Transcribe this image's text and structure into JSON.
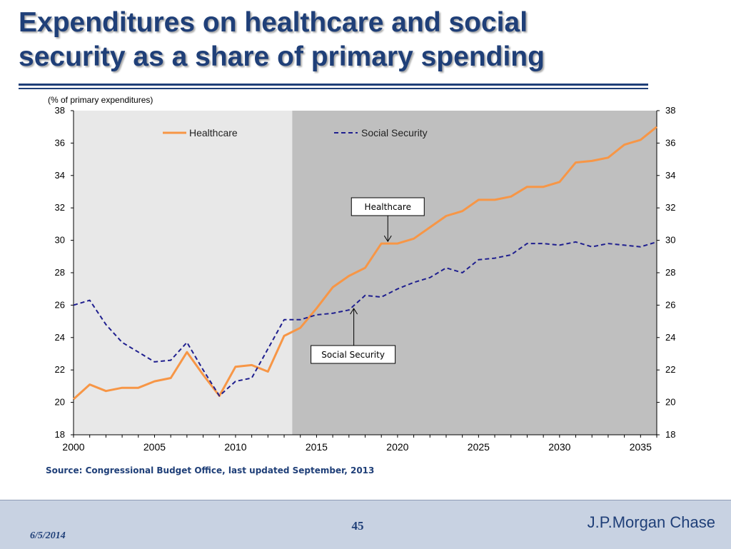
{
  "slide": {
    "title_line1": "Expenditures on healthcare and social",
    "title_line2": "security as a share of primary spending",
    "source": "Source: Congressional Budget Office, last updated September, 2013"
  },
  "footer": {
    "date": "6/5/2014",
    "page_number": "45",
    "brand": "J.P.Morgan Chase"
  },
  "colors": {
    "title": "#1f3f78",
    "healthcare_line": "#f79646",
    "social_security_line": "#1f1f8f",
    "historical_background": "#e8e8e8",
    "projection_background": "#bfbfbf",
    "footer_background": "#c8d2e2"
  },
  "chart_data": {
    "type": "line",
    "unit_label": "(% of primary expenditures)",
    "x": [
      2000,
      2001,
      2002,
      2003,
      2004,
      2005,
      2006,
      2007,
      2008,
      2009,
      2010,
      2011,
      2012,
      2013,
      2014,
      2015,
      2016,
      2017,
      2018,
      2019,
      2020,
      2021,
      2022,
      2023,
      2024,
      2025,
      2026,
      2027,
      2028,
      2029,
      2030,
      2031,
      2032,
      2033,
      2034,
      2035,
      2036
    ],
    "x_ticks": [
      2000,
      2005,
      2010,
      2015,
      2020,
      2025,
      2030,
      2035
    ],
    "xlim": [
      2000,
      2036
    ],
    "ylim": [
      18,
      38
    ],
    "y_ticks": [
      18,
      20,
      22,
      24,
      26,
      28,
      30,
      32,
      34,
      36,
      38
    ],
    "y_axes": "left-and-right",
    "grid": false,
    "legend_placement": "top",
    "projection_shading_start": 2013.5,
    "series": [
      {
        "name": "Healthcare",
        "style": "solid",
        "values": [
          20.2,
          21.1,
          20.7,
          20.9,
          20.9,
          21.3,
          21.5,
          23.1,
          21.7,
          20.4,
          22.2,
          22.3,
          21.9,
          24.1,
          24.6,
          25.8,
          27.1,
          27.8,
          28.3,
          29.8,
          29.8,
          30.1,
          30.8,
          31.5,
          31.8,
          32.5,
          32.5,
          32.7,
          33.3,
          33.3,
          33.6,
          34.8,
          34.9,
          35.1,
          35.9,
          36.2,
          37.0
        ]
      },
      {
        "name": "Social Security",
        "style": "dashed",
        "values": [
          26.0,
          26.3,
          24.8,
          23.7,
          23.1,
          22.5,
          22.6,
          23.7,
          22.0,
          20.4,
          21.3,
          21.5,
          23.3,
          25.1,
          25.1,
          25.4,
          25.5,
          25.7,
          26.6,
          26.5,
          27.0,
          27.4,
          27.7,
          28.3,
          28.0,
          28.8,
          28.9,
          29.1,
          29.8,
          29.8,
          29.7,
          29.9,
          29.6,
          29.8,
          29.7,
          29.6,
          29.9
        ]
      }
    ],
    "annotations": [
      {
        "text": "Healthcare",
        "points_to": {
          "series": "Healthcare",
          "x": 2019.4
        }
      },
      {
        "text": "Social Security",
        "points_to": {
          "series": "Social Security",
          "x": 2017.3
        }
      }
    ]
  }
}
